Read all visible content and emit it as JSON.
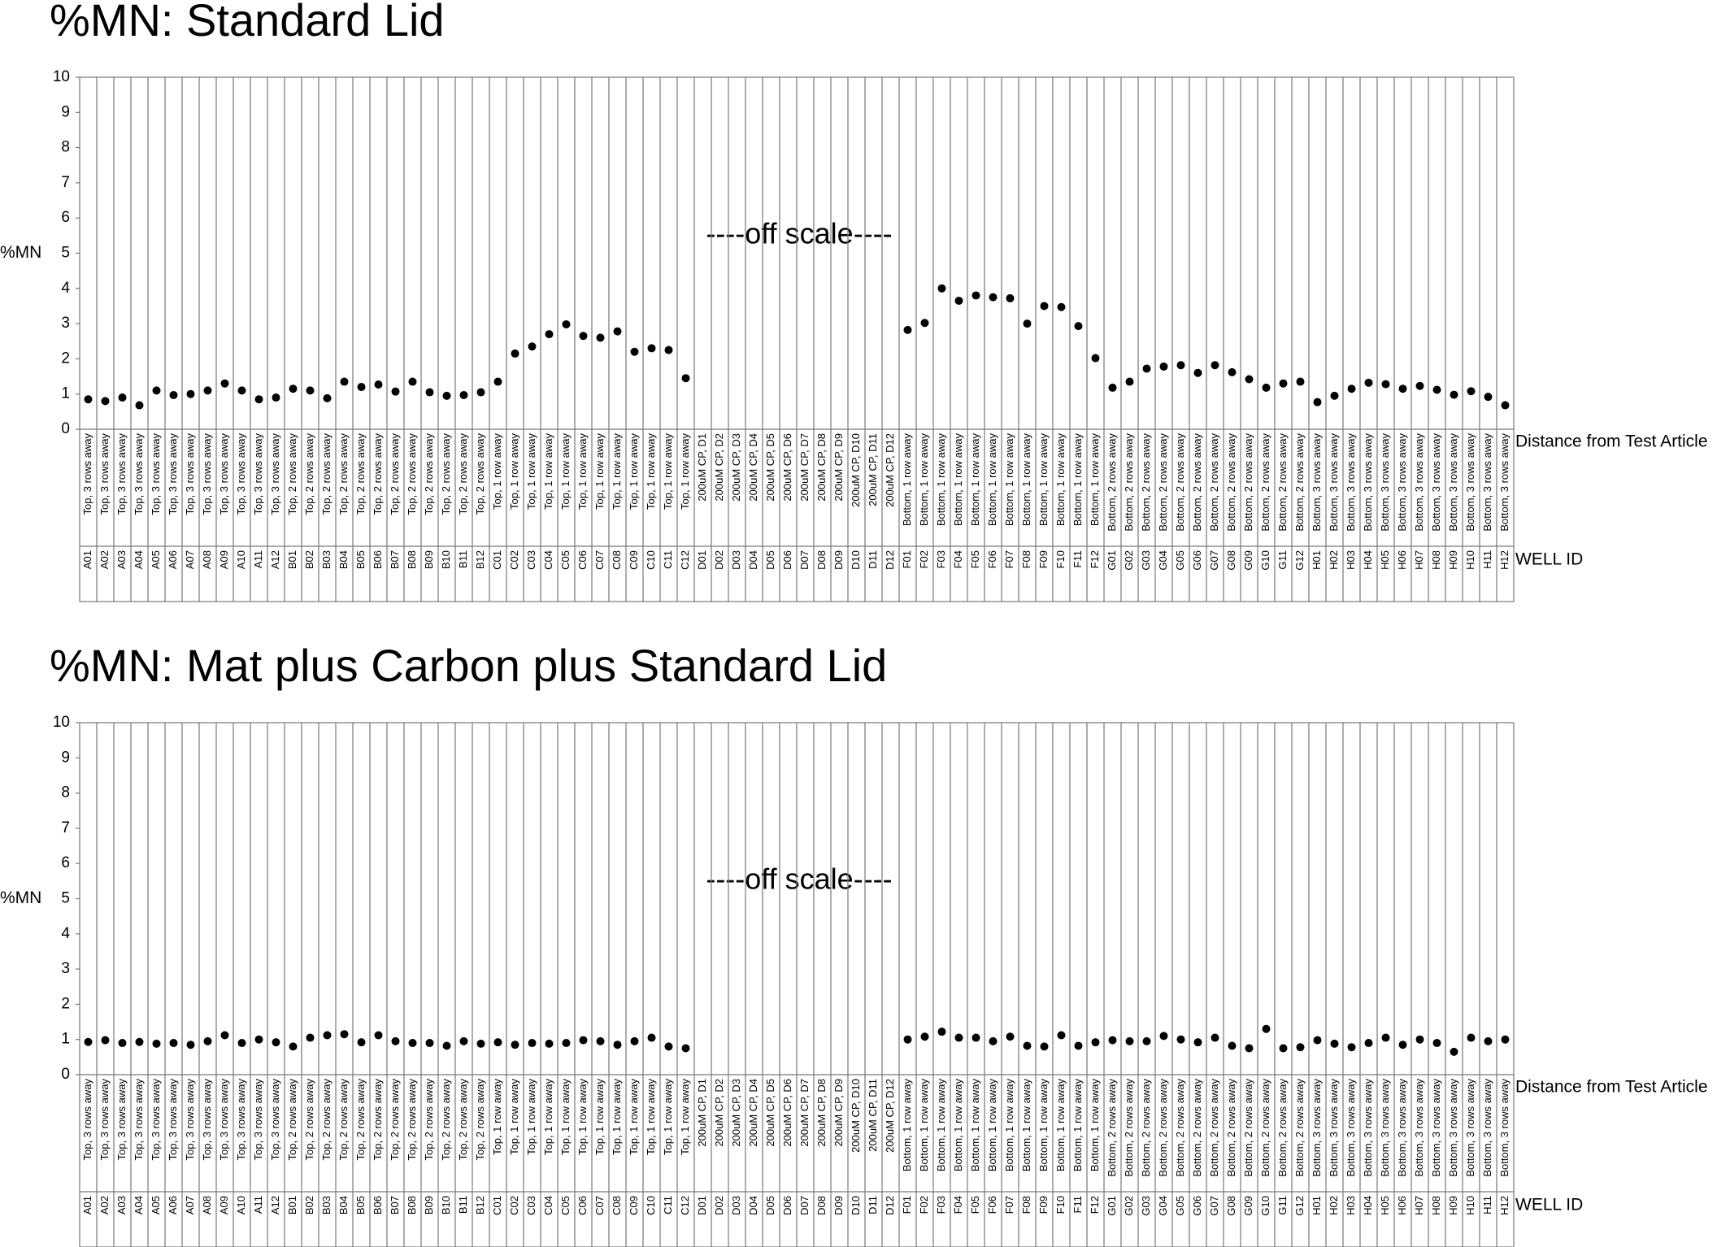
{
  "chart_data": [
    {
      "type": "dot",
      "title": "%MN: Standard Lid",
      "y_label": "%MN",
      "x_label": "Distance from Test Article",
      "x_label2": "WELL ID",
      "annotation": "----off scale----",
      "color": "#000000",
      "ylim": [
        0,
        10
      ],
      "yticks": [
        0,
        1,
        2,
        3,
        4,
        5,
        6,
        7,
        8,
        9,
        10
      ],
      "distance_labels": [
        "Top, 3 rows away",
        "Top, 3 rows away",
        "Top, 3 rows away",
        "Top, 3 rows away",
        "Top, 3 rows away",
        "Top, 3 rows away",
        "Top, 3 rows away",
        "Top, 3 rows away",
        "Top, 3 rows away",
        "Top, 3 rows away",
        "Top, 3 rows away",
        "Top, 3 rows away",
        "Top, 2 rows away",
        "Top, 2 rows away",
        "Top, 2 rows away",
        "Top, 2 rows away",
        "Top, 2 rows away",
        "Top, 2 rows away",
        "Top, 2 rows away",
        "Top, 2 rows away",
        "Top, 2 rows away",
        "Top, 2 rows away",
        "Top, 2 rows away",
        "Top, 2 rows away",
        "Top, 1 row away",
        "Top, 1 row away",
        "Top, 1 row away",
        "Top, 1 row away",
        "Top, 1 row away",
        "Top, 1 row away",
        "Top, 1 row away",
        "Top, 1 row away",
        "Top, 1 row away",
        "Top, 1 row away",
        "Top, 1 row away",
        "Top, 1 row away",
        "200uM CP, D1",
        "200uM CP, D2",
        "200uM CP, D3",
        "200uM CP, D4",
        "200uM CP, D5",
        "200uM CP, D6",
        "200uM CP, D7",
        "200uM CP, D8",
        "200uM CP, D9",
        "200uM CP, D10",
        "200uM CP, D11",
        "200uM CP, D12",
        "Bottom, 1 row away",
        "Bottom, 1 row away",
        "Bottom, 1 row away",
        "Bottom, 1 row away",
        "Bottom, 1 row away",
        "Bottom, 1 row away",
        "Bottom, 1 row away",
        "Bottom, 1 row away",
        "Bottom, 1 row away",
        "Bottom, 1 row away",
        "Bottom, 1 row away",
        "Bottom, 1 row away",
        "Bottom, 2 rows away",
        "Bottom, 2 rows away",
        "Bottom, 2 rows away",
        "Bottom, 2 rows away",
        "Bottom, 2 rows away",
        "Bottom, 2 rows away",
        "Bottom, 2 rows away",
        "Bottom, 2 rows away",
        "Bottom, 2 rows away",
        "Bottom, 2 rows away",
        "Bottom, 2 rows away",
        "Bottom, 2 rows away",
        "Bottom, 3 rows away",
        "Bottom, 3 rows away",
        "Bottom, 3 rows away",
        "Bottom, 3 rows away",
        "Bottom, 3 rows away",
        "Bottom, 3 rows away",
        "Bottom, 3 rows away",
        "Bottom, 3 rows away",
        "Bottom, 3 rows away",
        "Bottom, 3 rows away",
        "Bottom, 3 rows away",
        "Bottom, 3 rows away"
      ],
      "categories": [
        "A01",
        "A02",
        "A03",
        "A04",
        "A05",
        "A06",
        "A07",
        "A08",
        "A09",
        "A10",
        "A11",
        "A12",
        "B01",
        "B02",
        "B03",
        "B04",
        "B05",
        "B06",
        "B07",
        "B08",
        "B09",
        "B10",
        "B11",
        "B12",
        "C01",
        "C02",
        "C03",
        "C04",
        "C05",
        "C06",
        "C07",
        "C08",
        "C09",
        "C10",
        "C11",
        "C12",
        "D01",
        "D02",
        "D03",
        "D04",
        "D05",
        "D06",
        "D07",
        "D08",
        "D09",
        "D10",
        "D11",
        "D12",
        "F01",
        "F02",
        "F03",
        "F04",
        "F05",
        "F06",
        "F07",
        "F08",
        "F09",
        "F10",
        "F11",
        "F12",
        "G01",
        "G02",
        "G03",
        "G04",
        "G05",
        "G06",
        "G07",
        "G08",
        "G09",
        "G10",
        "G11",
        "G12",
        "H01",
        "H02",
        "H03",
        "H04",
        "H05",
        "H06",
        "H07",
        "H08",
        "H09",
        "H10",
        "H11",
        "H12"
      ],
      "values": [
        0.85,
        0.8,
        0.9,
        0.68,
        1.1,
        0.97,
        1.0,
        1.1,
        1.3,
        1.1,
        0.85,
        0.9,
        1.15,
        1.1,
        0.88,
        1.35,
        1.2,
        1.27,
        1.07,
        1.35,
        1.05,
        0.95,
        0.97,
        1.05,
        1.35,
        2.15,
        2.35,
        2.7,
        2.98,
        2.65,
        2.6,
        2.78,
        2.2,
        2.3,
        2.25,
        1.45,
        null,
        null,
        null,
        null,
        null,
        null,
        null,
        null,
        null,
        null,
        null,
        null,
        2.82,
        3.02,
        4.0,
        3.65,
        3.8,
        3.75,
        3.72,
        3.0,
        3.5,
        3.47,
        2.93,
        2.02,
        1.18,
        1.35,
        1.72,
        1.78,
        1.82,
        1.6,
        1.82,
        1.62,
        1.42,
        1.18,
        1.3,
        1.35,
        0.77,
        0.95,
        1.15,
        1.32,
        1.28,
        1.15,
        1.23,
        1.12,
        0.98,
        1.08,
        0.92,
        0.68
      ]
    },
    {
      "type": "dot",
      "title": "%MN: Mat plus Carbon plus Standard Lid",
      "y_label": "%MN",
      "x_label": "Distance from Test Article",
      "x_label2": "WELL ID",
      "annotation": "----off scale----",
      "color": "#000000",
      "ylim": [
        0,
        10
      ],
      "yticks": [
        0,
        1,
        2,
        3,
        4,
        5,
        6,
        7,
        8,
        9,
        10
      ],
      "distance_labels": [
        "Top, 3 rows away",
        "Top, 3 rows away",
        "Top, 3 rows away",
        "Top, 3 rows away",
        "Top, 3 rows away",
        "Top, 3 rows away",
        "Top, 3 rows away",
        "Top, 3 rows away",
        "Top, 3 rows away",
        "Top, 3 rows away",
        "Top, 3 rows away",
        "Top, 3 rows away",
        "Top, 2 rows away",
        "Top, 2 rows away",
        "Top, 2 rows away",
        "Top, 2 rows away",
        "Top, 2 rows away",
        "Top, 2 rows away",
        "Top, 2 rows away",
        "Top, 2 rows away",
        "Top, 2 rows away",
        "Top, 2 rows away",
        "Top, 2 rows away",
        "Top, 2 rows away",
        "Top, 1 row away",
        "Top, 1 row away",
        "Top, 1 row away",
        "Top, 1 row away",
        "Top, 1 row away",
        "Top, 1 row away",
        "Top, 1 row away",
        "Top, 1 row away",
        "Top, 1 row away",
        "Top, 1 row away",
        "Top, 1 row away",
        "Top, 1 row away",
        "200uM CP, D1",
        "200uM CP, D2",
        "200uM CP, D3",
        "200uM CP, D4",
        "200uM CP, D5",
        "200uM CP, D6",
        "200uM CP, D7",
        "200uM CP, D8",
        "200uM CP, D9",
        "200uM CP, D10",
        "200uM CP, D11",
        "200uM CP, D12",
        "Bottom, 1 row away",
        "Bottom, 1 row away",
        "Bottom, 1 row away",
        "Bottom, 1 row away",
        "Bottom, 1 row away",
        "Bottom, 1 row away",
        "Bottom, 1 row away",
        "Bottom, 1 row away",
        "Bottom, 1 row away",
        "Bottom, 1 row away",
        "Bottom, 1 row away",
        "Bottom, 1 row away",
        "Bottom, 2 rows away",
        "Bottom, 2 rows away",
        "Bottom, 2 rows away",
        "Bottom, 2 rows away",
        "Bottom, 2 rows away",
        "Bottom, 2 rows away",
        "Bottom, 2 rows away",
        "Bottom, 2 rows away",
        "Bottom, 2 rows away",
        "Bottom, 2 rows away",
        "Bottom, 2 rows away",
        "Bottom, 2 rows away",
        "Bottom, 3 rows away",
        "Bottom, 3 rows away",
        "Bottom, 3 rows away",
        "Bottom, 3 rows away",
        "Bottom, 3 rows away",
        "Bottom, 3 rows away",
        "Bottom, 3 rows away",
        "Bottom, 3 rows away",
        "Bottom, 3 rows away",
        "Bottom, 3 rows away",
        "Bottom, 3 rows away",
        "Bottom, 3 rows away"
      ],
      "categories": [
        "A01",
        "A02",
        "A03",
        "A04",
        "A05",
        "A06",
        "A07",
        "A08",
        "A09",
        "A10",
        "A11",
        "A12",
        "B01",
        "B02",
        "B03",
        "B04",
        "B05",
        "B06",
        "B07",
        "B08",
        "B09",
        "B10",
        "B11",
        "B12",
        "C01",
        "C02",
        "C03",
        "C04",
        "C05",
        "C06",
        "C07",
        "C08",
        "C09",
        "C10",
        "C11",
        "C12",
        "D01",
        "D02",
        "D03",
        "D04",
        "D05",
        "D06",
        "D07",
        "D08",
        "D09",
        "D10",
        "D11",
        "D12",
        "F01",
        "F02",
        "F03",
        "F04",
        "F05",
        "F06",
        "F07",
        "F08",
        "F09",
        "F10",
        "F11",
        "F12",
        "G01",
        "G02",
        "G03",
        "G04",
        "G05",
        "G06",
        "G07",
        "G08",
        "G09",
        "G10",
        "G11",
        "G12",
        "H01",
        "H02",
        "H03",
        "H04",
        "H05",
        "H06",
        "H07",
        "H08",
        "H09",
        "H10",
        "H11",
        "H12"
      ],
      "values": [
        0.93,
        0.98,
        0.9,
        0.93,
        0.88,
        0.9,
        0.85,
        0.95,
        1.12,
        0.9,
        1.0,
        0.92,
        0.8,
        1.05,
        1.12,
        1.15,
        0.92,
        1.12,
        0.95,
        0.9,
        0.9,
        0.82,
        0.95,
        0.88,
        0.92,
        0.85,
        0.9,
        0.88,
        0.9,
        0.98,
        0.95,
        0.85,
        0.95,
        1.05,
        0.8,
        0.75,
        null,
        null,
        null,
        null,
        null,
        null,
        null,
        null,
        null,
        null,
        null,
        null,
        1.0,
        1.08,
        1.22,
        1.05,
        1.05,
        0.95,
        1.08,
        0.82,
        0.8,
        1.12,
        0.82,
        0.92,
        0.98,
        0.95,
        0.95,
        1.1,
        1.0,
        0.92,
        1.05,
        0.82,
        0.75,
        1.3,
        0.75,
        0.78,
        0.98,
        0.88,
        0.78,
        0.9,
        1.05,
        0.85,
        1.0,
        0.9,
        0.65,
        1.05,
        0.95,
        1.0
      ]
    }
  ]
}
